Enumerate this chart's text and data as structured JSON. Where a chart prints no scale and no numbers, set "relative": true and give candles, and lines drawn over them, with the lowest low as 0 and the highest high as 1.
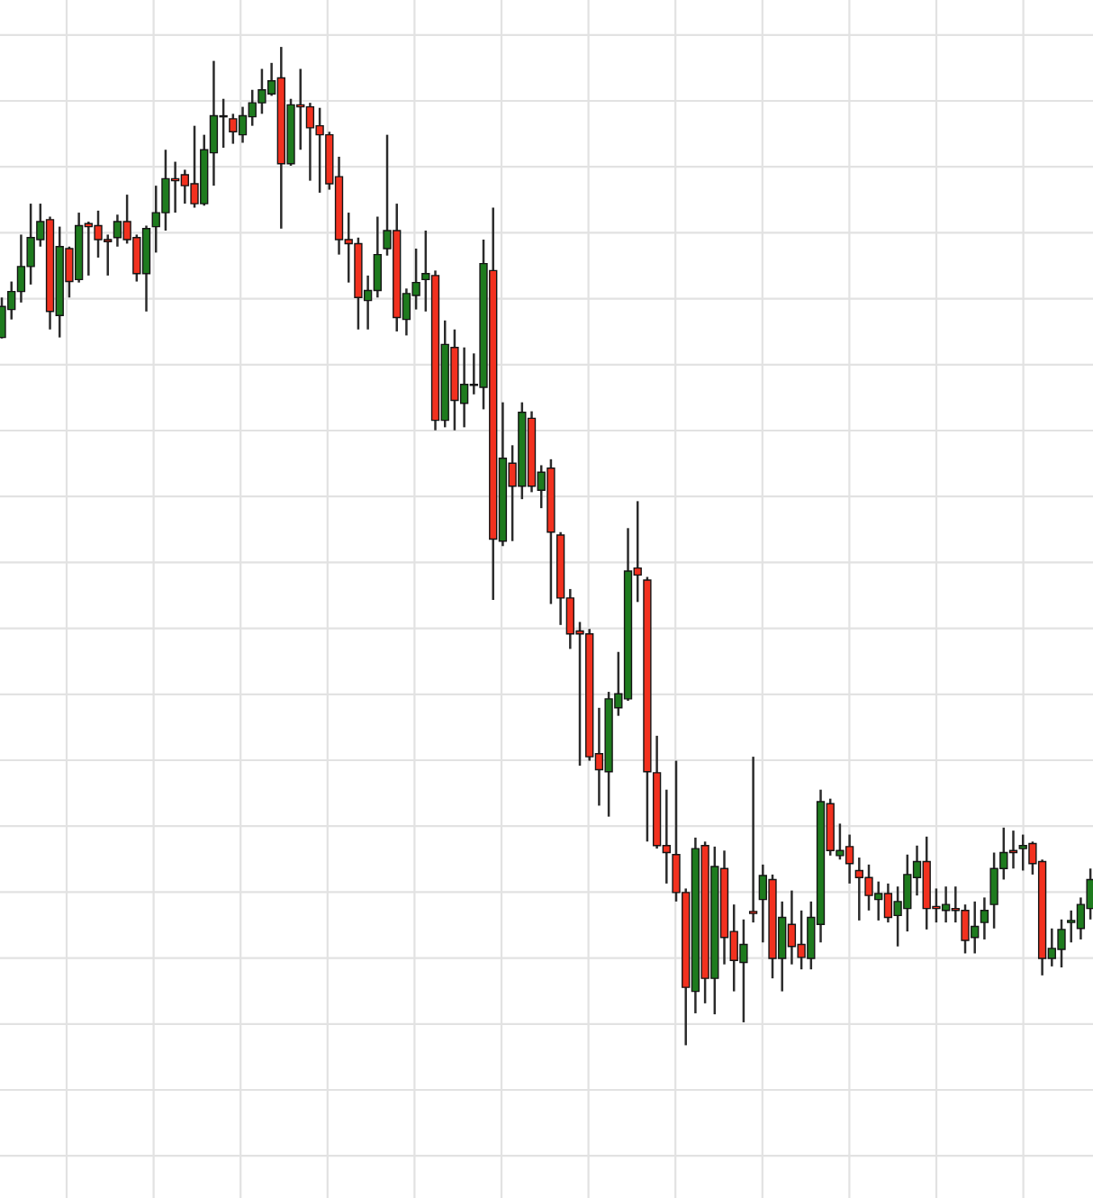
{
  "chart_data": {
    "type": "candlestick",
    "relative": true,
    "grid": true,
    "categories": [
      null,
      null,
      null,
      null,
      null,
      null,
      null,
      null,
      null,
      null,
      null,
      null,
      null,
      null,
      null,
      null,
      null,
      null,
      null,
      null,
      null,
      null,
      null,
      null,
      null,
      null,
      null,
      null,
      null,
      null,
      null,
      null,
      null,
      null,
      null,
      null,
      null,
      null,
      null,
      null,
      null,
      null,
      null,
      null,
      null,
      null,
      null,
      null,
      null,
      null,
      null,
      null,
      null,
      null,
      null,
      null,
      null,
      null,
      null,
      null,
      null,
      null,
      null,
      null,
      null,
      null,
      null,
      null,
      null,
      null,
      null,
      null,
      null,
      null,
      null,
      null,
      null,
      null,
      null,
      null,
      null,
      null,
      null,
      null,
      null,
      null,
      null,
      null,
      null,
      null,
      null,
      null,
      null,
      null,
      null,
      null,
      null,
      null,
      null,
      null,
      null,
      null,
      null,
      null,
      null,
      null,
      null,
      null,
      null,
      null,
      null,
      null,
      null,
      null
    ],
    "ohlc": [
      [
        0.709,
        0.749,
        0.708,
        0.74
      ],
      [
        0.737,
        0.765,
        0.727,
        0.755
      ],
      [
        0.755,
        0.812,
        0.744,
        0.78
      ],
      [
        0.78,
        0.843,
        0.762,
        0.809
      ],
      [
        0.807,
        0.843,
        0.8,
        0.825
      ],
      [
        0.827,
        0.83,
        0.717,
        0.735
      ],
      [
        0.731,
        0.82,
        0.709,
        0.8
      ],
      [
        0.798,
        0.8,
        0.749,
        0.765
      ],
      [
        0.767,
        0.834,
        0.764,
        0.821
      ],
      [
        0.823,
        0.825,
        0.771,
        0.82
      ],
      [
        0.821,
        0.836,
        0.789,
        0.807
      ],
      [
        0.807,
        0.812,
        0.771,
        0.805
      ],
      [
        0.809,
        0.832,
        0.8,
        0.825
      ],
      [
        0.825,
        0.852,
        0.803,
        0.807
      ],
      [
        0.809,
        0.812,
        0.765,
        0.773
      ],
      [
        0.773,
        0.821,
        0.735,
        0.818
      ],
      [
        0.82,
        0.861,
        0.794,
        0.834
      ],
      [
        0.834,
        0.897,
        0.816,
        0.868
      ],
      [
        0.868,
        0.885,
        0.834,
        0.866
      ],
      [
        0.872,
        0.877,
        0.843,
        0.861
      ],
      [
        0.863,
        0.921,
        0.839,
        0.843
      ],
      [
        0.843,
        0.912,
        0.841,
        0.897
      ],
      [
        0.894,
        0.986,
        0.861,
        0.931
      ],
      [
        0.931,
        0.948,
        0.899,
        0.93
      ],
      [
        0.928,
        0.933,
        0.903,
        0.915
      ],
      [
        0.912,
        0.94,
        0.904,
        0.931
      ],
      [
        0.93,
        0.957,
        0.921,
        0.944
      ],
      [
        0.944,
        0.978,
        0.933,
        0.957
      ],
      [
        0.953,
        0.984,
        0.951,
        0.966
      ],
      [
        0.969,
        1,
        0.818,
        0.883
      ],
      [
        0.883,
        0.948,
        0.881,
        0.942
      ],
      [
        0.942,
        0.978,
        0.897,
        0.94
      ],
      [
        0.94,
        0.944,
        0.866,
        0.919
      ],
      [
        0.921,
        0.939,
        0.854,
        0.912
      ],
      [
        0.912,
        0.915,
        0.857,
        0.863
      ],
      [
        0.87,
        0.89,
        0.792,
        0.807
      ],
      [
        0.807,
        0.834,
        0.764,
        0.803
      ],
      [
        0.803,
        0.809,
        0.717,
        0.749
      ],
      [
        0.746,
        0.771,
        0.717,
        0.756
      ],
      [
        0.756,
        0.83,
        0.749,
        0.792
      ],
      [
        0.798,
        0.912,
        0.791,
        0.816
      ],
      [
        0.816,
        0.843,
        0.715,
        0.729
      ],
      [
        0.727,
        0.758,
        0.711,
        0.753
      ],
      [
        0.751,
        0.798,
        0.737,
        0.764
      ],
      [
        0.767,
        0.816,
        0.735,
        0.773
      ],
      [
        0.771,
        0.776,
        0.616,
        0.626
      ],
      [
        0.626,
        0.726,
        0.619,
        0.702
      ],
      [
        0.699,
        0.717,
        0.616,
        0.646
      ],
      [
        0.643,
        0.699,
        0.619,
        0.662
      ],
      [
        0.662,
        0.693,
        0.652,
        0.661
      ],
      [
        0.659,
        0.807,
        0.637,
        0.783
      ],
      [
        0.776,
        0.839,
        0.446,
        0.507
      ],
      [
        0.505,
        0.644,
        0.5,
        0.588
      ],
      [
        0.583,
        0.601,
        0.505,
        0.56
      ],
      [
        0.56,
        0.644,
        0.547,
        0.634
      ],
      [
        0.628,
        0.635,
        0.554,
        0.56
      ],
      [
        0.556,
        0.581,
        0.538,
        0.574
      ],
      [
        0.578,
        0.587,
        0.442,
        0.514
      ],
      [
        0.511,
        0.514,
        0.421,
        0.448
      ],
      [
        0.448,
        0.457,
        0.397,
        0.412
      ],
      [
        0.415,
        0.424,
        0.28,
        0.412
      ],
      [
        0.412,
        0.417,
        0.285,
        0.289
      ],
      [
        0.292,
        0.338,
        0.24,
        0.276
      ],
      [
        0.274,
        0.354,
        0.229,
        0.347
      ],
      [
        0.338,
        0.394,
        0.33,
        0.352
      ],
      [
        0.347,
        0.518,
        0.345,
        0.475
      ],
      [
        0.478,
        0.545,
        0.444,
        0.471
      ],
      [
        0.466,
        0.469,
        0.204,
        0.274
      ],
      [
        0.273,
        0.31,
        0.197,
        0.2
      ],
      [
        0.2,
        0.256,
        0.162,
        0.193
      ],
      [
        0.191,
        0.285,
        0.144,
        0.153
      ],
      [
        0.153,
        0.157,
        0,
        0.058
      ],
      [
        0.054,
        0.208,
        0.032,
        0.197
      ],
      [
        0.2,
        0.204,
        0.042,
        0.067
      ],
      [
        0.067,
        0.199,
        0.031,
        0.179
      ],
      [
        0.177,
        0.195,
        0.081,
        0.108
      ],
      [
        0.114,
        0.141,
        0.054,
        0.085
      ],
      [
        0.083,
        0.126,
        0.023,
        0.101
      ],
      [
        0.134,
        0.289,
        0.123,
        0.132
      ],
      [
        0.146,
        0.181,
        0.103,
        0.17
      ],
      [
        0.166,
        0.171,
        0.067,
        0.087
      ],
      [
        0.087,
        0.144,
        0.054,
        0.128
      ],
      [
        0.121,
        0.155,
        0.081,
        0.099
      ],
      [
        0.101,
        0.135,
        0.076,
        0.088
      ],
      [
        0.087,
        0.144,
        0.076,
        0.128
      ],
      [
        0.121,
        0.256,
        0.103,
        0.244
      ],
      [
        0.242,
        0.247,
        0.19,
        0.195
      ],
      [
        0.19,
        0.222,
        0.186,
        0.195
      ],
      [
        0.199,
        0.211,
        0.162,
        0.182
      ],
      [
        0.175,
        0.188,
        0.125,
        0.168
      ],
      [
        0.168,
        0.181,
        0.135,
        0.15
      ],
      [
        0.146,
        0.164,
        0.125,
        0.152
      ],
      [
        0.152,
        0.162,
        0.123,
        0.128
      ],
      [
        0.13,
        0.159,
        0.099,
        0.144
      ],
      [
        0.137,
        0.191,
        0.114,
        0.171
      ],
      [
        0.168,
        0.2,
        0.15,
        0.184
      ],
      [
        0.184,
        0.209,
        0.116,
        0.137
      ],
      [
        0.139,
        0.157,
        0.123,
        0.137
      ],
      [
        0.135,
        0.159,
        0.123,
        0.141
      ],
      [
        0.137,
        0.159,
        0.123,
        0.135
      ],
      [
        0.135,
        0.141,
        0.092,
        0.105
      ],
      [
        0.108,
        0.144,
        0.092,
        0.119
      ],
      [
        0.123,
        0.148,
        0.106,
        0.135
      ],
      [
        0.141,
        0.193,
        0.117,
        0.177
      ],
      [
        0.177,
        0.218,
        0.166,
        0.193
      ],
      [
        0.195,
        0.215,
        0.177,
        0.193
      ],
      [
        0.197,
        0.211,
        0.175,
        0.2
      ],
      [
        0.202,
        0.204,
        0.171,
        0.182
      ],
      [
        0.184,
        0.186,
        0.07,
        0.087
      ],
      [
        0.087,
        0.117,
        0.079,
        0.097
      ],
      [
        0.096,
        0.126,
        0.078,
        0.116
      ],
      [
        0.123,
        0.135,
        0.103,
        0.125
      ],
      [
        0.117,
        0.148,
        0.106,
        0.141
      ],
      [
        0.137,
        0.177,
        0.126,
        0.166
      ]
    ],
    "colors": [
      "#1e7b1e",
      "#1e7b1e",
      "#1e7b1e",
      "#1e7b1e",
      "#1e7b1e",
      "#f2311f",
      "#1e7b1e",
      "#f2311f",
      "#1e7b1e",
      "#f2311f",
      "#f2311f",
      "#f2311f",
      "#1e7b1e",
      "#f2311f",
      "#f2311f",
      "#1e7b1e",
      "#1e7b1e",
      "#1e7b1e",
      "#f2311f",
      "#f2311f",
      "#f2311f",
      "#1e7b1e",
      "#1e7b1e",
      "#f2311f",
      "#f2311f",
      "#1e7b1e",
      "#1e7b1e",
      "#1e7b1e",
      "#1e7b1e",
      "#f2311f",
      "#1e7b1e",
      "#f2311f",
      "#f2311f",
      "#f2311f",
      "#f2311f",
      "#f2311f",
      "#f2311f",
      "#f2311f",
      "#1e7b1e",
      "#1e7b1e",
      "#1e7b1e",
      "#f2311f",
      "#1e7b1e",
      "#1e7b1e",
      "#1e7b1e",
      "#f2311f",
      "#1e7b1e",
      "#f2311f",
      "#1e7b1e",
      "#f2311f",
      "#1e7b1e",
      "#f2311f",
      "#1e7b1e",
      "#f2311f",
      "#1e7b1e",
      "#f2311f",
      "#1e7b1e",
      "#f2311f",
      "#f2311f",
      "#f2311f",
      "#f2311f",
      "#f2311f",
      "#f2311f",
      "#1e7b1e",
      "#1e7b1e",
      "#1e7b1e",
      "#f2311f",
      "#f2311f",
      "#f2311f",
      "#f2311f",
      "#f2311f",
      "#f2311f",
      "#1e7b1e",
      "#f2311f",
      "#1e7b1e",
      "#f2311f",
      "#f2311f",
      "#1e7b1e",
      "#f2311f",
      "#1e7b1e",
      "#f2311f",
      "#1e7b1e",
      "#f2311f",
      "#f2311f",
      "#1e7b1e",
      "#1e7b1e",
      "#f2311f",
      "#1e7b1e",
      "#f2311f",
      "#f2311f",
      "#f2311f",
      "#1e7b1e",
      "#f2311f",
      "#1e7b1e",
      "#1e7b1e",
      "#1e7b1e",
      "#f2311f",
      "#f2311f",
      "#1e7b1e",
      "#f2311f",
      "#f2311f",
      "#1e7b1e",
      "#1e7b1e",
      "#1e7b1e",
      "#1e7b1e",
      "#f2311f",
      "#1e7b1e",
      "#f2311f",
      "#f2311f",
      "#1e7b1e",
      "#1e7b1e",
      "#1e7b1e",
      "#1e7b1e",
      "#1e7b1e"
    ]
  }
}
